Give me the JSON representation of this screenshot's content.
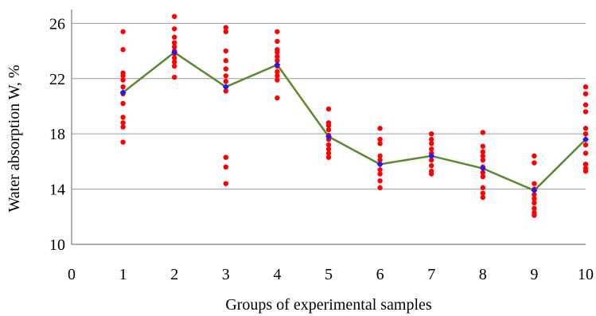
{
  "chart_data": {
    "type": "scatter",
    "title": "",
    "xlabel": "Groups of experimental samples",
    "ylabel": "Water absorption W, %",
    "xlim": [
      0,
      10
    ],
    "ylim": [
      10,
      27
    ],
    "x_ticks": [
      "0",
      "1",
      "2",
      "3",
      "4",
      "5",
      "6",
      "7",
      "8",
      "9",
      "10"
    ],
    "y_ticks": [
      "10",
      "14",
      "18",
      "22",
      "26"
    ],
    "grid": "horizontal",
    "legend": "none",
    "colors": {
      "points": "#ff0000",
      "mean_line": "#5a8a2e",
      "mean_markers": "#1a1aff",
      "axis": "#7f7f7f",
      "grid": "#9a9a9a"
    },
    "series": [
      {
        "role": "individual samples",
        "marker": "circle",
        "points": [
          [
            1,
            25.4
          ],
          [
            1,
            24.1
          ],
          [
            1,
            22.4
          ],
          [
            1,
            22.2
          ],
          [
            1,
            21.9
          ],
          [
            1,
            21.4
          ],
          [
            1,
            20.9
          ],
          [
            1,
            20.2
          ],
          [
            1,
            19.2
          ],
          [
            1,
            18.8
          ],
          [
            1,
            18.5
          ],
          [
            1,
            17.4
          ],
          [
            2,
            26.5
          ],
          [
            2,
            25.6
          ],
          [
            2,
            25.0
          ],
          [
            2,
            24.6
          ],
          [
            2,
            24.3
          ],
          [
            2,
            24.0
          ],
          [
            2,
            23.8
          ],
          [
            2,
            23.5
          ],
          [
            2,
            23.2
          ],
          [
            2,
            22.9
          ],
          [
            2,
            22.1
          ],
          [
            3,
            25.7
          ],
          [
            3,
            25.4
          ],
          [
            3,
            24.0
          ],
          [
            3,
            23.3
          ],
          [
            3,
            22.7
          ],
          [
            3,
            22.2
          ],
          [
            3,
            21.8
          ],
          [
            3,
            21.4
          ],
          [
            3,
            21.1
          ],
          [
            3,
            16.3
          ],
          [
            3,
            15.6
          ],
          [
            3,
            14.4
          ],
          [
            4,
            25.4
          ],
          [
            4,
            24.7
          ],
          [
            4,
            24.1
          ],
          [
            4,
            23.9
          ],
          [
            4,
            23.6
          ],
          [
            4,
            23.3
          ],
          [
            4,
            22.9
          ],
          [
            4,
            22.5
          ],
          [
            4,
            22.2
          ],
          [
            4,
            21.9
          ],
          [
            4,
            20.6
          ],
          [
            5,
            19.8
          ],
          [
            5,
            18.8
          ],
          [
            5,
            18.6
          ],
          [
            5,
            18.3
          ],
          [
            5,
            17.9
          ],
          [
            5,
            17.6
          ],
          [
            5,
            17.2
          ],
          [
            5,
            16.9
          ],
          [
            5,
            16.6
          ],
          [
            5,
            16.3
          ],
          [
            6,
            18.4
          ],
          [
            6,
            17.6
          ],
          [
            6,
            17.3
          ],
          [
            6,
            16.4
          ],
          [
            6,
            16.1
          ],
          [
            6,
            15.8
          ],
          [
            6,
            15.4
          ],
          [
            6,
            15.1
          ],
          [
            6,
            14.6
          ],
          [
            6,
            14.1
          ],
          [
            7,
            18.0
          ],
          [
            7,
            17.6
          ],
          [
            7,
            17.3
          ],
          [
            7,
            16.9
          ],
          [
            7,
            16.6
          ],
          [
            7,
            16.4
          ],
          [
            7,
            16.1
          ],
          [
            7,
            15.7
          ],
          [
            7,
            15.3
          ],
          [
            7,
            15.1
          ],
          [
            8,
            18.1
          ],
          [
            8,
            17.1
          ],
          [
            8,
            16.7
          ],
          [
            8,
            16.4
          ],
          [
            8,
            16.1
          ],
          [
            8,
            15.6
          ],
          [
            8,
            15.2
          ],
          [
            8,
            14.9
          ],
          [
            8,
            14.1
          ],
          [
            8,
            13.7
          ],
          [
            8,
            13.4
          ],
          [
            9,
            16.4
          ],
          [
            9,
            15.9
          ],
          [
            9,
            14.4
          ],
          [
            9,
            14.0
          ],
          [
            9,
            13.6
          ],
          [
            9,
            13.3
          ],
          [
            9,
            13.0
          ],
          [
            9,
            12.6
          ],
          [
            9,
            12.3
          ],
          [
            9,
            12.1
          ],
          [
            10,
            21.4
          ],
          [
            10,
            20.9
          ],
          [
            10,
            20.1
          ],
          [
            10,
            19.6
          ],
          [
            10,
            18.4
          ],
          [
            10,
            18.0
          ],
          [
            10,
            17.6
          ],
          [
            10,
            17.2
          ],
          [
            10,
            16.6
          ],
          [
            10,
            15.8
          ],
          [
            10,
            15.5
          ],
          [
            10,
            15.3
          ]
        ]
      },
      {
        "role": "group mean",
        "marker": "diamond",
        "line": true,
        "x": [
          1,
          2,
          3,
          4,
          5,
          6,
          7,
          8,
          9,
          10
        ],
        "y": [
          21.0,
          23.9,
          21.4,
          23.0,
          17.8,
          15.8,
          16.4,
          15.5,
          13.9,
          17.6
        ]
      }
    ]
  }
}
